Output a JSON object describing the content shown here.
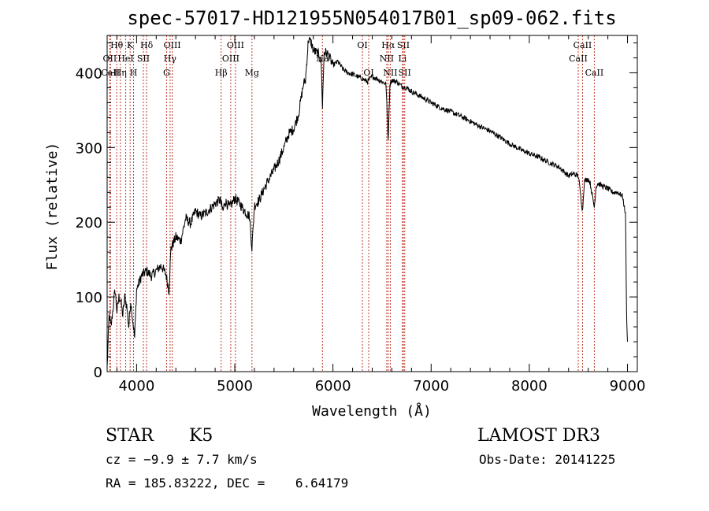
{
  "chart_data": {
    "type": "line",
    "title": "spec-57017-HD121955N054017B01_sp09-062.fits",
    "xlabel": "Wavelength (Å)",
    "ylabel": "Flux (relative)",
    "xlim": [
      3700,
      9100
    ],
    "ylim": [
      0,
      450
    ],
    "x_ticks": [
      4000,
      5000,
      6000,
      7000,
      8000,
      9000
    ],
    "y_ticks": [
      0,
      100,
      200,
      300,
      400
    ],
    "grid": false,
    "series": [
      {
        "name": "spectrum",
        "x": [
          3700,
          3720,
          3740,
          3760,
          3780,
          3800,
          3820,
          3840,
          3860,
          3880,
          3900,
          3920,
          3940,
          3960,
          3980,
          4000,
          4050,
          4100,
          4150,
          4200,
          4250,
          4300,
          4330,
          4350,
          4400,
          4450,
          4500,
          4550,
          4600,
          4650,
          4700,
          4750,
          4800,
          4850,
          4880,
          4900,
          4950,
          5000,
          5050,
          5100,
          5150,
          5175,
          5200,
          5250,
          5300,
          5350,
          5400,
          5450,
          5500,
          5550,
          5600,
          5650,
          5700,
          5720,
          5750,
          5780,
          5800,
          5850,
          5880,
          5893,
          5910,
          5950,
          6000,
          6050,
          6100,
          6150,
          6200,
          6250,
          6300,
          6350,
          6400,
          6450,
          6500,
          6540,
          6563,
          6580,
          6600,
          6650,
          6700,
          6750,
          6800,
          6900,
          7000,
          7100,
          7200,
          7300,
          7400,
          7500,
          7600,
          7700,
          7800,
          7900,
          8000,
          8100,
          8200,
          8300,
          8400,
          8450,
          8500,
          8542,
          8560,
          8600,
          8620,
          8662,
          8680,
          8700,
          8750,
          8800,
          8850,
          8900,
          8950,
          8980,
          8990,
          9000
        ],
        "values": [
          5,
          75,
          60,
          85,
          110,
          80,
          100,
          95,
          75,
          100,
          88,
          60,
          95,
          70,
          45,
          110,
          128,
          135,
          128,
          135,
          142,
          130,
          108,
          165,
          180,
          175,
          205,
          198,
          215,
          208,
          212,
          218,
          225,
          230,
          215,
          228,
          220,
          232,
          225,
          215,
          208,
          165,
          222,
          230,
          245,
          258,
          270,
          283,
          300,
          318,
          325,
          345,
          385,
          390,
          445,
          440,
          430,
          425,
          415,
          355,
          428,
          425,
          410,
          415,
          405,
          400,
          398,
          395,
          392,
          388,
          395,
          392,
          388,
          385,
          310,
          385,
          390,
          388,
          382,
          380,
          375,
          368,
          360,
          353,
          348,
          342,
          335,
          328,
          322,
          314,
          305,
          298,
          292,
          287,
          280,
          274,
          262,
          265,
          262,
          215,
          255,
          258,
          252,
          220,
          248,
          252,
          248,
          245,
          240,
          240,
          235,
          210,
          80,
          40
        ]
      }
    ],
    "line_markers": [
      {
        "label": "Hθ",
        "x": 3798,
        "row": 1
      },
      {
        "label": "OII",
        "x": 3727,
        "row": 2
      },
      {
        "label": "CaII",
        "x": 3734,
        "row": 3
      },
      {
        "label": "K",
        "x": 3934,
        "row": 1
      },
      {
        "label": "HeI",
        "x": 3889,
        "row": 2
      },
      {
        "label": "Hη",
        "x": 3835,
        "row": 3
      },
      {
        "label": "Hδ",
        "x": 4102,
        "row": 1
      },
      {
        "label": "SII",
        "x": 4069,
        "row": 2
      },
      {
        "label": "H",
        "x": 3969,
        "row": 3
      },
      {
        "label": "OIII",
        "x": 4363,
        "row": 1
      },
      {
        "label": "Hγ",
        "x": 4341,
        "row": 2
      },
      {
        "label": "G",
        "x": 4305,
        "row": 3
      },
      {
        "label": "OIII",
        "x": 5007,
        "row": 1
      },
      {
        "label": "OIII",
        "x": 4959,
        "row": 2
      },
      {
        "label": "Hβ",
        "x": 4861,
        "row": 3
      },
      {
        "label": "Mg",
        "x": 5175,
        "row": 3
      },
      {
        "label": "Na",
        "x": 5893,
        "row": 2
      },
      {
        "label": "OI",
        "x": 6300,
        "row": 1
      },
      {
        "label": "OI",
        "x": 6364,
        "row": 3
      },
      {
        "label": "Hα",
        "x": 6563,
        "row": 1
      },
      {
        "label": "NII",
        "x": 6548,
        "row": 2
      },
      {
        "label": "NII",
        "x": 6584,
        "row": 3
      },
      {
        "label": "SII",
        "x": 6717,
        "row": 1
      },
      {
        "label": "Li",
        "x": 6708,
        "row": 2
      },
      {
        "label": "SII",
        "x": 6731,
        "row": 3
      },
      {
        "label": "CaII",
        "x": 8542,
        "row": 1
      },
      {
        "label": "CaII",
        "x": 8498,
        "row": 2
      },
      {
        "label": "CaII",
        "x": 8662,
        "row": 3
      }
    ]
  },
  "info": {
    "class": "STAR",
    "subclass": "K5",
    "survey": "LAMOST DR3",
    "cz": "cz = −9.9 ± 7.7 km/s",
    "obs_date": "Obs-Date: 20141225",
    "radec": "RA = 185.83222, DEC =    6.64179"
  },
  "colors": {
    "marker_line": "#c0392b",
    "spectrum": "#000000",
    "axis": "#000000"
  }
}
